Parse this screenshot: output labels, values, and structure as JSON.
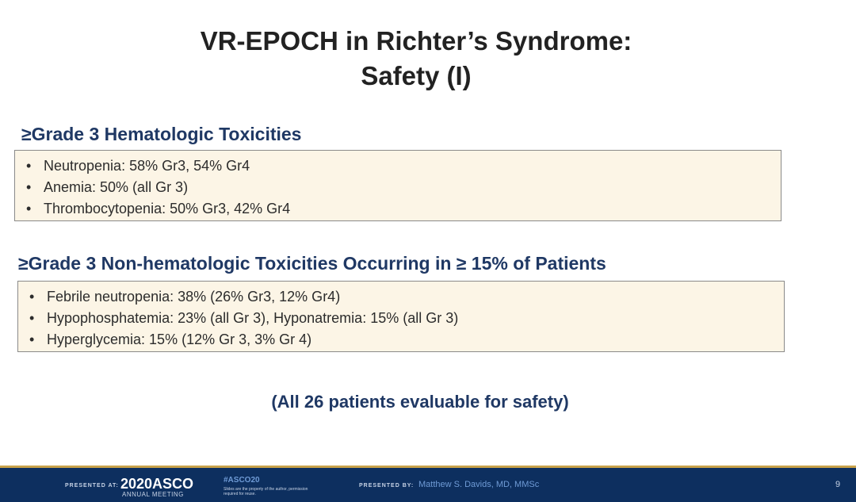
{
  "slide": {
    "title_line1": "VR-EPOCH in Richter’s Syndrome:",
    "title_line2": "Safety (I)"
  },
  "hematologic": {
    "heading": "≥Grade 3 Hematologic Toxicities",
    "bullet": "•",
    "items": [
      "Neutropenia: 58% Gr3, 54% Gr4",
      "Anemia: 50% (all Gr 3)",
      "Thrombocytopenia: 50% Gr3, 42% Gr4"
    ]
  },
  "nonhematologic": {
    "heading": "≥Grade 3 Non-hematologic Toxicities Occurring in ≥ 15% of Patients",
    "bullet": "•",
    "items": [
      "Febrile neutropenia: 38% (26% Gr3, 12% Gr4)",
      "Hypophosphatemia:  23% (all Gr 3), Hyponatremia:  15% (all Gr 3)",
      "Hyperglycemia:  15% (12% Gr 3, 3% Gr 4)"
    ]
  },
  "note": "(All 26 patients evaluable for safety)",
  "footer": {
    "presented_at": "PRESENTED AT:",
    "meeting_logo": "2020ASCO",
    "meeting_sub": "ANNUAL MEETING",
    "hashtag": "#ASCO20",
    "disclaimer": "Slides are the property of the author, permission required for reuse.",
    "presented_by": "PRESENTED BY:",
    "presenter": "Matthew S. Davids, MD, MMSc",
    "page_number": "9"
  },
  "colors": {
    "heading": "#1f3864",
    "box_background": "#fcf5e6",
    "footer_background": "#0d2f5f",
    "footer_accent": "#c9a24a"
  }
}
